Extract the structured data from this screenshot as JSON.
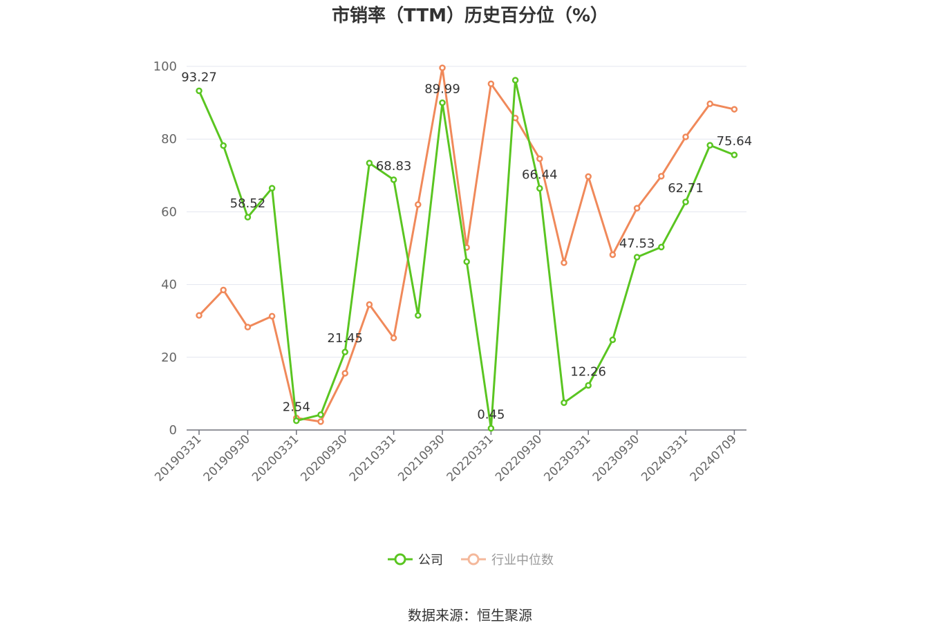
{
  "chart_data": {
    "type": "line",
    "title": "市销率（TTM）历史百分位（%）",
    "source": "数据来源：恒生聚源",
    "ylim": [
      0,
      100
    ],
    "yticks": [
      0,
      20,
      40,
      60,
      80,
      100
    ],
    "grid": true,
    "legend_position": "bottom",
    "x": [
      "20190331",
      "20190630",
      "20190930",
      "20191231",
      "20200331",
      "20200630",
      "20200930",
      "20201231",
      "20210331",
      "20210630",
      "20210930",
      "20211231",
      "20220331",
      "20220630",
      "20220930",
      "20221231",
      "20230331",
      "20230630",
      "20230930",
      "20231231",
      "20240331",
      "20240630",
      "20240709"
    ],
    "xtick_labels": [
      "20190331",
      "20190930",
      "20200331",
      "20200930",
      "20210331",
      "20210930",
      "20220331",
      "20220930",
      "20230331",
      "20230930",
      "20240331",
      "20240709"
    ],
    "series": [
      {
        "name": "公司",
        "color": "#5ac521",
        "values": [
          93.27,
          78.2,
          58.52,
          66.5,
          2.54,
          4.2,
          21.45,
          73.4,
          68.83,
          31.5,
          89.99,
          46.3,
          0.45,
          96.2,
          66.44,
          7.5,
          12.26,
          24.8,
          47.53,
          50.3,
          62.71,
          78.3,
          75.64
        ],
        "labels": [
          "93.27",
          "",
          "58.52",
          "",
          "2.54",
          "",
          "21.45",
          "",
          "68.83",
          "",
          "89.99",
          "",
          "0.45",
          "",
          "66.44",
          "",
          "12.26",
          "",
          "47.53",
          "",
          "62.71",
          "",
          "75.64"
        ]
      },
      {
        "name": "行业中位数",
        "color": "#f0895a",
        "values": [
          31.5,
          38.5,
          28.3,
          31.3,
          3.3,
          2.3,
          15.6,
          34.5,
          25.3,
          62.0,
          99.6,
          50.2,
          95.2,
          85.8,
          74.6,
          46.0,
          69.7,
          48.2,
          61.0,
          69.8,
          80.6,
          89.7,
          88.2
        ]
      }
    ]
  }
}
